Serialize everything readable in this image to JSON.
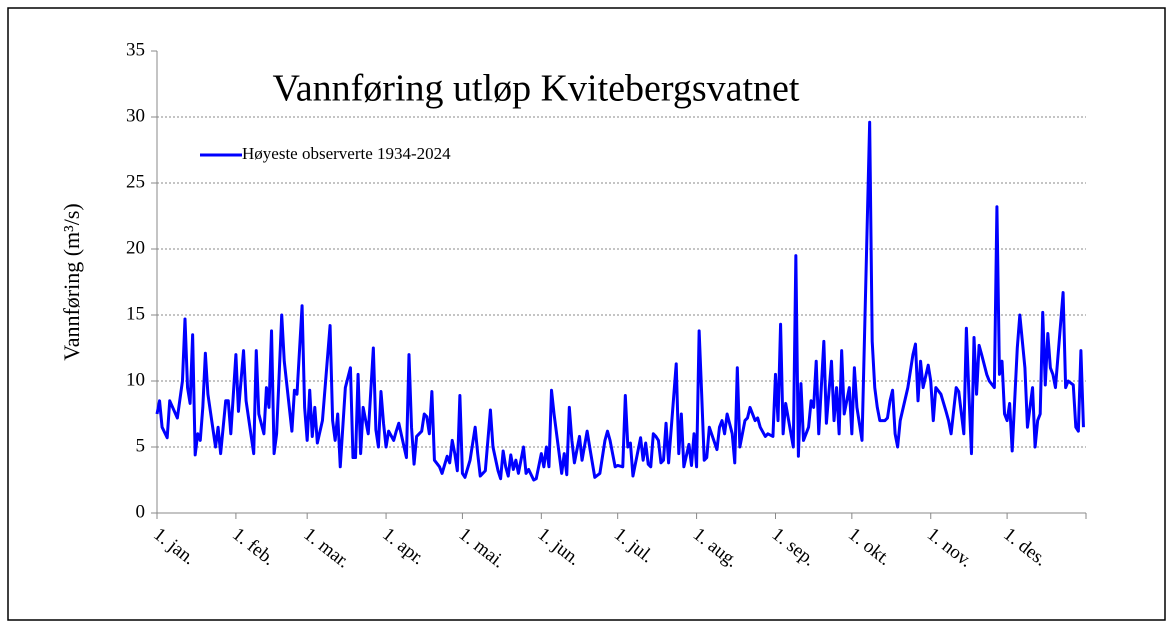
{
  "chart_data": {
    "type": "line",
    "title": "Vannføring utløp Kvitebergsvatnet",
    "y_label": "Vannføring  (m³/s)",
    "legend": "upper left",
    "grid": true,
    "xlim": [
      1,
      366
    ],
    "xticks": [
      {
        "value": 1,
        "label": "1. jan."
      },
      {
        "value": 32,
        "label": "1. feb."
      },
      {
        "value": 60,
        "label": "1. mar."
      },
      {
        "value": 91,
        "label": "1. apr."
      },
      {
        "value": 121,
        "label": "1. mai."
      },
      {
        "value": 152,
        "label": "1. jun."
      },
      {
        "value": 182,
        "label": "1. jul."
      },
      {
        "value": 213,
        "label": "1. aug."
      },
      {
        "value": 244,
        "label": "1. sep."
      },
      {
        "value": 274,
        "label": "1. okt."
      },
      {
        "value": 305,
        "label": "1. nov."
      },
      {
        "value": 335,
        "label": "1. des."
      }
    ],
    "ylim": [
      0,
      35
    ],
    "yticks": [
      0,
      5,
      10,
      15,
      20,
      25,
      30,
      35
    ],
    "x": [
      1,
      2,
      3,
      5,
      6,
      9,
      11,
      12,
      13,
      14,
      15,
      16,
      17,
      18,
      19,
      20,
      21,
      24,
      25,
      26,
      28,
      29,
      30,
      32,
      33,
      35,
      36,
      39,
      40,
      41,
      43,
      44,
      45,
      46,
      47,
      48,
      50,
      51,
      54,
      55,
      56,
      58,
      59,
      60,
      61,
      62,
      63,
      64,
      66,
      69,
      70,
      71,
      72,
      73,
      75,
      77,
      78,
      79,
      80,
      81,
      82,
      84,
      86,
      87,
      88,
      89,
      90,
      91,
      92,
      94,
      95,
      96,
      99,
      100,
      101,
      102,
      103,
      105,
      106,
      107,
      108,
      109,
      110,
      112,
      113,
      115,
      116,
      117,
      118,
      119,
      120,
      121,
      122,
      124,
      126,
      127,
      128,
      130,
      132,
      133,
      135,
      136,
      137,
      138,
      139,
      140,
      141,
      142,
      143,
      145,
      146,
      147,
      149,
      150,
      152,
      153,
      154,
      155,
      156,
      157,
      160,
      161,
      162,
      163,
      164,
      165,
      167,
      168,
      170,
      171,
      173,
      175,
      177,
      178,
      179,
      180,
      181,
      182,
      184,
      185,
      186,
      187,
      188,
      191,
      192,
      193,
      194,
      195,
      196,
      197,
      198,
      199,
      200,
      201,
      202,
      205,
      206,
      207,
      208,
      210,
      211,
      212,
      213,
      214,
      215,
      216,
      217,
      218,
      221,
      222,
      223,
      224,
      225,
      227,
      228,
      229,
      230,
      232,
      233,
      234,
      236,
      237,
      238,
      240,
      241,
      243,
      244,
      245,
      246,
      247,
      248,
      251,
      252,
      253,
      254,
      255,
      257,
      258,
      259,
      260,
      261,
      263,
      264,
      266,
      267,
      268,
      269,
      270,
      271,
      272,
      273,
      274,
      275,
      276,
      278,
      281,
      282,
      283,
      284,
      285,
      287,
      288,
      289,
      290,
      291,
      292,
      293,
      296,
      298,
      299,
      300,
      301,
      302,
      304,
      305,
      306,
      307,
      309,
      311,
      312,
      313,
      315,
      316,
      318,
      319,
      320,
      321,
      322,
      323,
      324,
      325,
      327,
      328,
      330,
      331,
      332,
      333,
      334,
      335,
      336,
      337,
      339,
      340,
      342,
      343,
      345,
      346,
      347,
      348,
      349,
      350,
      351,
      352,
      353,
      354,
      357,
      358,
      359,
      361,
      362,
      363,
      364,
      365
    ],
    "series": [
      {
        "name": "Høyeste observerte 1934-2024",
        "color": "#0000ff",
        "values": [
          7.5,
          8.5,
          6.5,
          5.7,
          8.5,
          7.2,
          10,
          14.7,
          9.5,
          8.3,
          13.5,
          4.4,
          6,
          5.5,
          8,
          12.1,
          9,
          5,
          6.5,
          4.5,
          8.5,
          8.5,
          6,
          12,
          7.7,
          12.3,
          8.5,
          4.5,
          12.3,
          7.5,
          6,
          9.5,
          8,
          13.8,
          4.5,
          6,
          15,
          11.5,
          6.2,
          9.3,
          9,
          15.7,
          8,
          5.5,
          9.3,
          5.8,
          8,
          5.3,
          7,
          14.2,
          7,
          5.5,
          7.5,
          3.5,
          9.5,
          11,
          4.2,
          4.2,
          10.5,
          4.5,
          8,
          6,
          12.5,
          6.3,
          5,
          9.2,
          6.8,
          5,
          6.2,
          5.5,
          6.2,
          6.8,
          4.2,
          12,
          6.5,
          3.7,
          5.8,
          6.2,
          7.5,
          7.3,
          6,
          9.2,
          4,
          3.5,
          3,
          4.3,
          3.8,
          5.5,
          4.5,
          3.2,
          8.9,
          3,
          2.7,
          4,
          6.5,
          4.5,
          2.8,
          3.2,
          7.8,
          5,
          3.2,
          2.6,
          4.7,
          3.5,
          2.8,
          4.4,
          3.3,
          4,
          3,
          5,
          3,
          3.3,
          2.5,
          2.6,
          4.5,
          3.5,
          5,
          3.5,
          9.3,
          7.5,
          3,
          4.5,
          2.9,
          8,
          5.5,
          3.8,
          5.8,
          4,
          6.2,
          5,
          2.7,
          3,
          5.5,
          6.2,
          5.5,
          4.5,
          3.5,
          3.6,
          3.5,
          8.9,
          5,
          5.3,
          2.8,
          5.7,
          4,
          5.3,
          3.7,
          3.5,
          6,
          5.8,
          5.5,
          3.8,
          4,
          6.8,
          3.8,
          11.3,
          4.5,
          7.5,
          3.5,
          5.2,
          3.6,
          6,
          3.5,
          13.8,
          9,
          4,
          4.2,
          6.5,
          4.8,
          6.5,
          7,
          6,
          7.5,
          6,
          3.8,
          11,
          5,
          7,
          7.2,
          8,
          7,
          7.2,
          6.5,
          5.8,
          6,
          5.8,
          10.5,
          7,
          14.3,
          6,
          8.3,
          5,
          19.5,
          4.3,
          9.8,
          5.5,
          6.5,
          8.5,
          8,
          11.5,
          6,
          13,
          6.8,
          11.5,
          7,
          9.5,
          6,
          12.3,
          7.5,
          8.5,
          9.5,
          6,
          11,
          8,
          5.5,
          29.6,
          13,
          9.5,
          8,
          7,
          7,
          7.2,
          8.5,
          9.3,
          6,
          5,
          7,
          9.5,
          12,
          12.8,
          8.5,
          11.5,
          9.5,
          11.2,
          10,
          7,
          9.5,
          9,
          7.7,
          7,
          6,
          9.5,
          9.2,
          6,
          14,
          9,
          4.5,
          13.3,
          9,
          12.7,
          12,
          10.5,
          10,
          9.5,
          23.2,
          10.5,
          11.5,
          7.5,
          7,
          8.3,
          4.7,
          12.5,
          15,
          11,
          6.5,
          9.5,
          5,
          7,
          7.5,
          15.2,
          9.7,
          13.6,
          11,
          10.5,
          9.5,
          16.7,
          9.5,
          10,
          9.7,
          6.5,
          6.2,
          12.3,
          6.5
        ]
      }
    ]
  }
}
